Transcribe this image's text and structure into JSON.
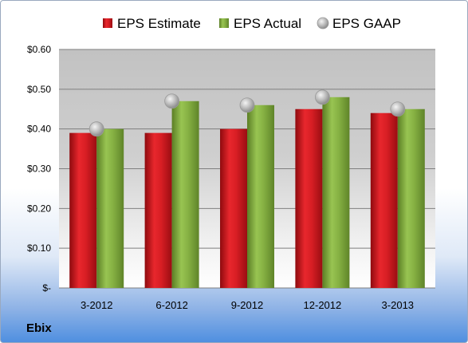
{
  "company": "Ebix",
  "colors": {
    "estimate": "#c8161c",
    "actual": "#7da83c",
    "gaap": "#b5b5b5"
  },
  "chart_data": {
    "type": "bar",
    "categories": [
      "3-2012",
      "6-2012",
      "9-2012",
      "12-2012",
      "3-2013"
    ],
    "series": [
      {
        "name": "EPS Estimate",
        "type": "bar",
        "values": [
          0.39,
          0.39,
          0.4,
          0.45,
          0.44
        ]
      },
      {
        "name": "EPS Actual",
        "type": "bar",
        "values": [
          0.4,
          0.47,
          0.46,
          0.48,
          0.45
        ]
      },
      {
        "name": "EPS GAAP",
        "type": "scatter",
        "values": [
          0.4,
          0.47,
          0.46,
          0.48,
          0.45
        ]
      }
    ],
    "yticks": [
      "$-",
      "$0.10",
      "$0.20",
      "$0.30",
      "$0.40",
      "$0.50",
      "$0.60"
    ],
    "ylim": [
      0,
      0.6
    ],
    "legend": "top",
    "grid": true
  }
}
